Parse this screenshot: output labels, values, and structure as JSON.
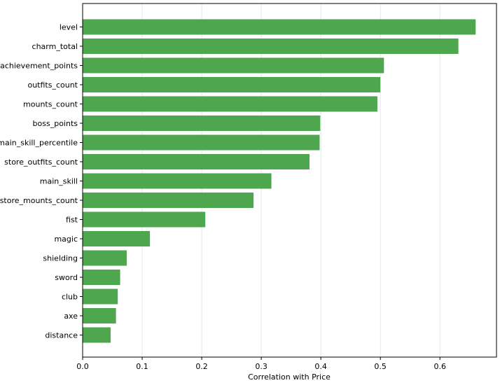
{
  "chart_data": {
    "type": "bar",
    "orientation": "horizontal",
    "title": "",
    "xlabel": "Correlation with Price",
    "ylabel": "",
    "xlim": [
      0,
      0.695
    ],
    "x_ticks": [
      0.0,
      0.1,
      0.2,
      0.3,
      0.4,
      0.5,
      0.6
    ],
    "x_tick_labels": [
      "0.0",
      "0.1",
      "0.2",
      "0.3",
      "0.4",
      "0.5",
      "0.6"
    ],
    "grid": "x-only",
    "bar_color": "#4ea64e",
    "categories": [
      "level",
      "charm_total",
      "achievement_points",
      "outfits_count",
      "mounts_count",
      "boss_points",
      "main_skill_percentile",
      "store_outfits_count",
      "main_skill",
      "store_mounts_count",
      "fist",
      "magic",
      "shielding",
      "sword",
      "club",
      "axe",
      "distance"
    ],
    "values": [
      0.66,
      0.631,
      0.506,
      0.5,
      0.495,
      0.399,
      0.398,
      0.381,
      0.317,
      0.287,
      0.206,
      0.113,
      0.074,
      0.063,
      0.059,
      0.056,
      0.047
    ]
  }
}
